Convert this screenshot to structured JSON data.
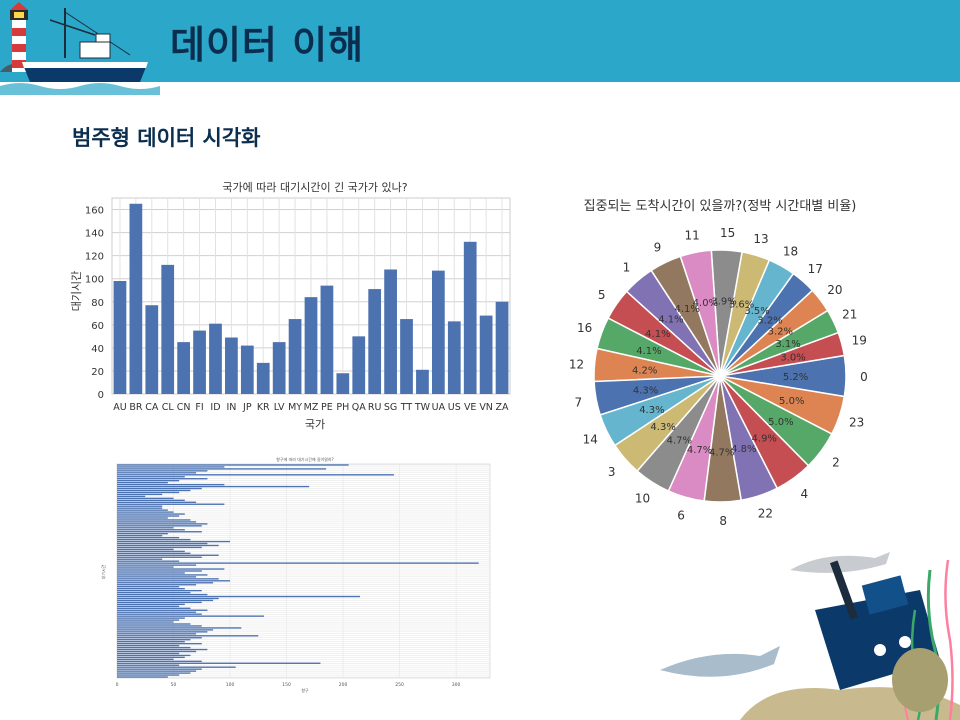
{
  "header": {
    "title": "데이터 이해"
  },
  "section": {
    "title": "범주형 데이터 시각화"
  },
  "chart_data": [
    {
      "type": "bar",
      "title": "국가에 따라 대기시간이 긴 국가가 있나?",
      "xlabel": "국가",
      "ylabel": "대기시간",
      "categories": [
        "AU",
        "BR",
        "CA",
        "CL",
        "CN",
        "FI",
        "ID",
        "IN",
        "JP",
        "KR",
        "LV",
        "MY",
        "MZ",
        "PE",
        "PH",
        "QA",
        "RU",
        "SG",
        "TT",
        "TW",
        "UA",
        "US",
        "VE",
        "VN",
        "ZA"
      ],
      "values": [
        98,
        165,
        77,
        112,
        45,
        55,
        61,
        49,
        42,
        27,
        45,
        65,
        84,
        94,
        18,
        50,
        91,
        108,
        65,
        21,
        107,
        63,
        132,
        68,
        80
      ],
      "ylim": [
        0,
        170
      ],
      "yticks": [
        0,
        20,
        40,
        60,
        80,
        100,
        120,
        140,
        160
      ],
      "grid": true,
      "color": "#4c72b0"
    },
    {
      "type": "pie",
      "title": "집중되는 도착시간이 있을까?(정박 시간대별 비율)",
      "labels": [
        "0",
        "19",
        "21",
        "20",
        "17",
        "18",
        "13",
        "15",
        "11",
        "9",
        "1",
        "5",
        "16",
        "12",
        "7",
        "14",
        "3",
        "10",
        "6",
        "8",
        "22",
        "4",
        "2",
        "23"
      ],
      "values": [
        5.2,
        3.0,
        3.1,
        3.2,
        3.2,
        3.5,
        3.6,
        3.9,
        4.0,
        4.1,
        4.1,
        4.1,
        4.1,
        4.2,
        4.3,
        4.3,
        4.3,
        4.7,
        4.7,
        4.7,
        4.8,
        4.9,
        5.0,
        5.0
      ],
      "value_labels": [
        "5.2%",
        "3.0%",
        "3.1%",
        "3.2%",
        "3.2%",
        "3.5%",
        "3.6%",
        "3.9%",
        "4.0%",
        "4.1%",
        "4.1%",
        "4.1%",
        "4.1%",
        "4.2%",
        "4.3%",
        "4.3%",
        "4.3%",
        "4.7%",
        "4.7%",
        "4.7%",
        "4.8%",
        "4.9%",
        "5.0%",
        "5.0%"
      ],
      "colors": [
        "#4c72b0",
        "#c44e52",
        "#55a868",
        "#dd8452",
        "#4c72b0",
        "#64b5cd",
        "#ccb974",
        "#8c8c8c",
        "#da8bc3",
        "#937860",
        "#8172b3",
        "#c44e52",
        "#55a868",
        "#dd8452",
        "#4c72b0",
        "#64b5cd",
        "#ccb974",
        "#8c8c8c",
        "#da8bc3",
        "#937860",
        "#8172b3",
        "#c44e52",
        "#55a868",
        "#dd8452"
      ]
    },
    {
      "type": "bar",
      "orientation": "horizontal",
      "title": "항구에 따라 대기시간에 길이말하?",
      "xlabel": "항구",
      "ylabel": "대기시간",
      "xticks": [
        "0",
        "50",
        "100",
        "150",
        "200",
        "250",
        "300"
      ],
      "xlim": [
        0,
        330
      ],
      "values": [
        205,
        95,
        185,
        80,
        70,
        245,
        60,
        80,
        55,
        45,
        95,
        170,
        75,
        65,
        55,
        40,
        25,
        50,
        60,
        70,
        95,
        40,
        40,
        45,
        50,
        60,
        55,
        45,
        65,
        70,
        80,
        75,
        50,
        60,
        75,
        45,
        40,
        55,
        65,
        100,
        80,
        90,
        75,
        50,
        60,
        65,
        90,
        75,
        40,
        55,
        320,
        70,
        50,
        95,
        75,
        60,
        80,
        70,
        90,
        100,
        85,
        70,
        55,
        60,
        75,
        65,
        80,
        215,
        90,
        85,
        75,
        60,
        55,
        65,
        80,
        70,
        75,
        130,
        60,
        55,
        50,
        65,
        75,
        110,
        85,
        80,
        70,
        125,
        75,
        65,
        60,
        75,
        55,
        65,
        80,
        70,
        55,
        65,
        60,
        50,
        75,
        180,
        55,
        105,
        75,
        70,
        65,
        55,
        45
      ],
      "grid": true,
      "color": "#4c72b0"
    }
  ]
}
